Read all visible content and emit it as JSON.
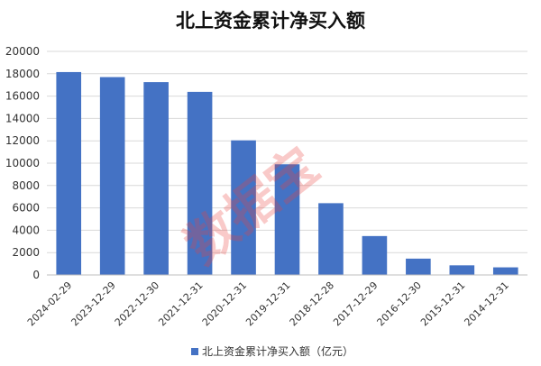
{
  "chart_data": {
    "type": "bar",
    "title": "北上资金累计净买入额",
    "categories": [
      "2024-02-29",
      "2023-12-29",
      "2022-12-30",
      "2021-12-31",
      "2020-12-31",
      "2019-12-31",
      "2018-12-28",
      "2017-12-29",
      "2016-12-30",
      "2015-12-31",
      "2014-12-31"
    ],
    "series": [
      {
        "name": "北上资金累计净买入额（亿元）",
        "values": [
          18150,
          17700,
          17250,
          16380,
          12040,
          9900,
          6420,
          3480,
          1460,
          860,
          680
        ]
      }
    ],
    "ylim": [
      0,
      20000
    ],
    "yticks": [
      0,
      2000,
      4000,
      6000,
      8000,
      10000,
      12000,
      14000,
      16000,
      18000,
      20000
    ],
    "grid": true,
    "legend_position": "bottom",
    "colors": {
      "bar": "#4472c4",
      "grid": "#d9d9d9"
    },
    "watermark": "数据宝"
  }
}
